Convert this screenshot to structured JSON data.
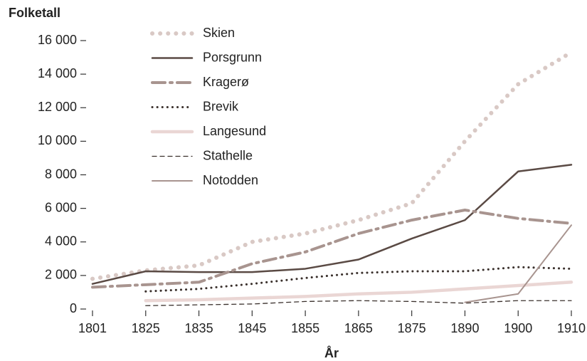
{
  "chart_data": {
    "type": "line",
    "ylabel": "Folketall",
    "xlabel": "År",
    "categories": [
      "1801",
      "1825",
      "1835",
      "1845",
      "1855",
      "1865",
      "1875",
      "1890",
      "1900",
      "1910"
    ],
    "ylim": [
      0,
      16000
    ],
    "yticks": [
      0,
      {
        "value": 2000,
        "label": "2 000"
      },
      {
        "value": 4000,
        "label": "4 000"
      },
      {
        "value": 6000,
        "label": "6 000"
      },
      {
        "value": 8000,
        "label": "8 000"
      },
      {
        "value": 10000,
        "label": "10 000"
      },
      {
        "value": 12000,
        "label": "12 000"
      },
      {
        "value": 14000,
        "label": "14 000"
      },
      {
        "value": 16000,
        "label": "16 000"
      }
    ],
    "legend": "top-left",
    "series": [
      {
        "name": "Skien",
        "color": "#d9c9c5",
        "width": 6,
        "dash": "0.1 11",
        "values": [
          1800,
          2300,
          2600,
          4000,
          4500,
          5300,
          6300,
          10000,
          13400,
          15300
        ]
      },
      {
        "name": "Porsgrunn",
        "color": "#5a4a44",
        "width": 2.5,
        "dash": "none",
        "values": [
          1500,
          2250,
          2200,
          2200,
          2400,
          2950,
          4200,
          5300,
          8200,
          8600
        ]
      },
      {
        "name": "Kragerø",
        "color": "#a8948f",
        "width": 4,
        "dash": "18 7 3 7",
        "values": [
          1300,
          1450,
          1600,
          2700,
          3400,
          4500,
          5300,
          5900,
          5400,
          5100
        ]
      },
      {
        "name": "Brevik",
        "color": "#3a302c",
        "width": 3,
        "dash": "0.1 7",
        "values": [
          null,
          1050,
          1200,
          1500,
          1850,
          2150,
          2250,
          2250,
          2500,
          2400
        ]
      },
      {
        "name": "Langesund",
        "color": "#ead6d4",
        "width": 4.5,
        "dash": "none",
        "values": [
          null,
          500,
          550,
          650,
          750,
          900,
          1000,
          1200,
          1400,
          1600
        ]
      },
      {
        "name": "Stathelle",
        "color": "#3a302c",
        "width": 1.3,
        "dash": "6 5",
        "values": [
          null,
          200,
          250,
          300,
          450,
          500,
          450,
          350,
          500,
          500
        ]
      },
      {
        "name": "Notodden",
        "color": "#a8948f",
        "width": 2,
        "dash": "none",
        "values": [
          null,
          null,
          null,
          null,
          null,
          null,
          null,
          400,
          900,
          5000
        ]
      }
    ]
  }
}
